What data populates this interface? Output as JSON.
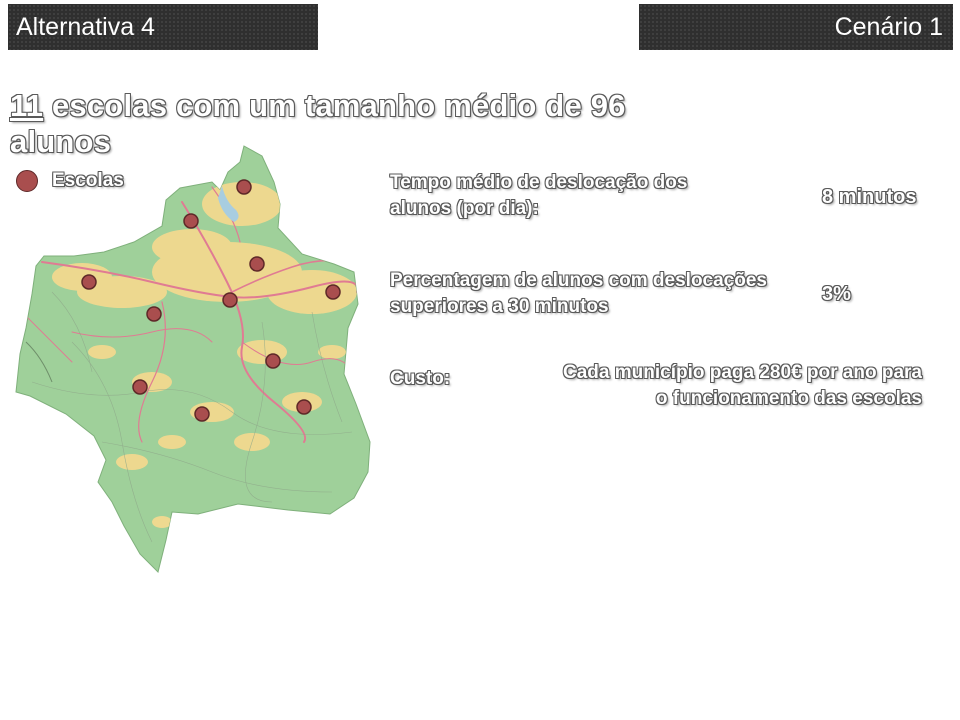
{
  "header": {
    "alternative": "Alternativa 4",
    "scenario": "Cenário 1"
  },
  "headline": {
    "count": "11",
    "rest": " escolas com um tamanho médio de 96 alunos"
  },
  "legend": {
    "label": "Escolas",
    "marker_color": "#a94e4e"
  },
  "stats": [
    {
      "label": "Tempo médio de deslocação dos alunos (por dia):",
      "value": "8 minutos"
    },
    {
      "label": "Percentagem de alunos com deslocações superiores a 30 minutos",
      "value": "3%"
    },
    {
      "label": "Custo:",
      "value": "Cada município paga 280€ por ano para o funcionamento das escolas"
    }
  ],
  "map": {
    "land_color": "#9fd09a",
    "urban_color": "#f2d98f",
    "road_color": "#e07b93",
    "water_color": "#a8cde0",
    "school_count": 11
  }
}
